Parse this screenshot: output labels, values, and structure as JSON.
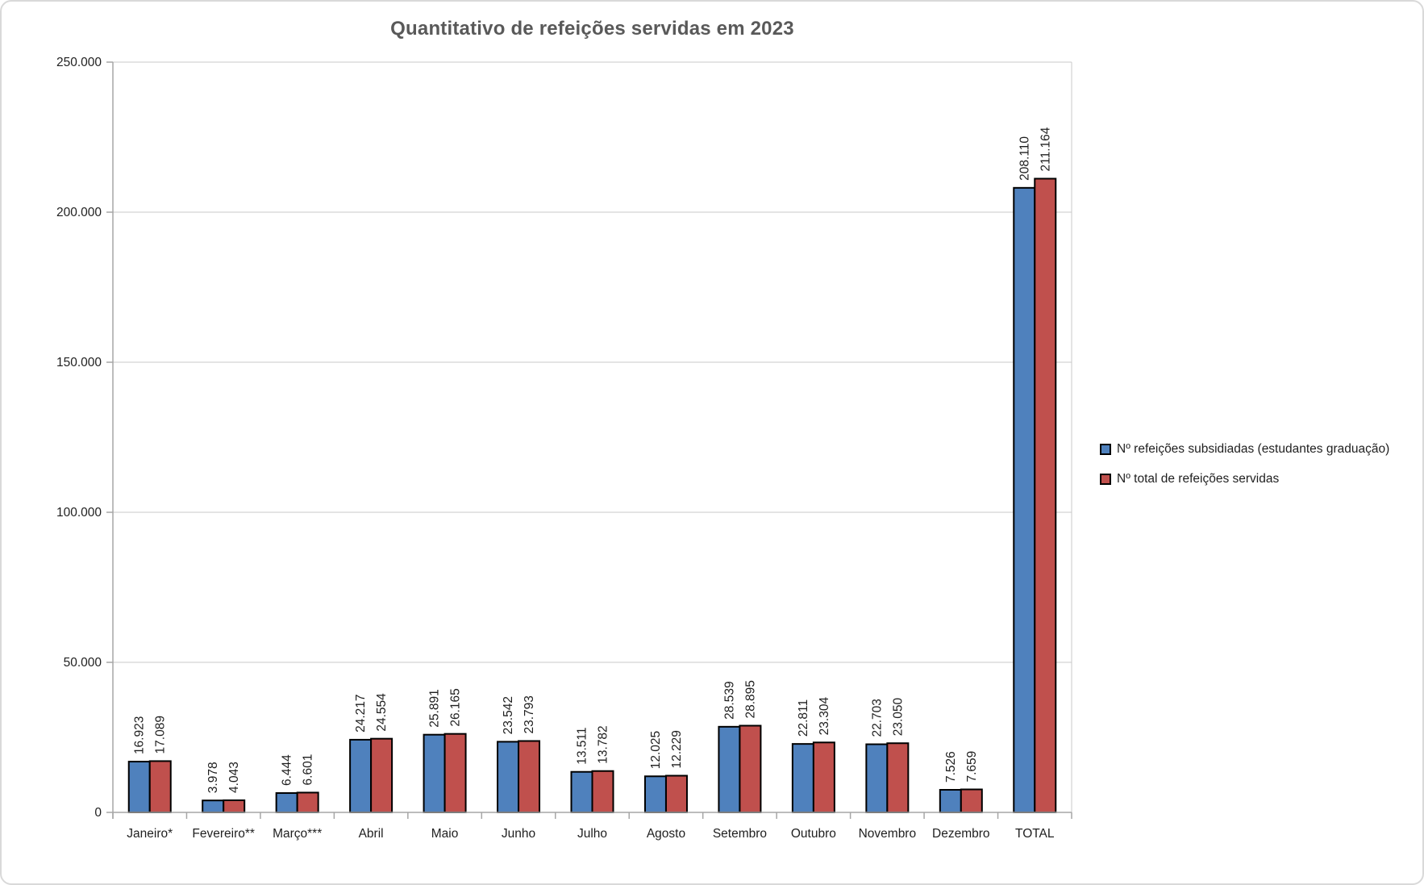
{
  "chart_data": {
    "type": "bar",
    "title": "Quantitativo de refeições servidas em 2023",
    "categories": [
      "Janeiro*",
      "Fevereiro**",
      "Março***",
      "Abril",
      "Maio",
      "Junho",
      "Julho",
      "Agosto",
      "Setembro",
      "Outubro",
      "Novembro",
      "Dezembro",
      "TOTAL"
    ],
    "series": [
      {
        "name": "Nº refeições subsidiadas (estudantes graduação)",
        "color": "#4F81BD",
        "values": [
          16923,
          3978,
          6444,
          24217,
          25891,
          23542,
          13511,
          12025,
          28539,
          22811,
          22703,
          7526,
          208110
        ],
        "labels": [
          "16.923",
          "3.978",
          "6.444",
          "24.217",
          "25.891",
          "23.542",
          "13.511",
          "12.025",
          "28.539",
          "22.811",
          "22.703",
          "7.526",
          "208.110"
        ]
      },
      {
        "name": "Nº total de refeições servidas",
        "color": "#C0504D",
        "values": [
          17089,
          4043,
          6601,
          24554,
          26165,
          23793,
          13782,
          12229,
          28895,
          23304,
          23050,
          7659,
          211164
        ],
        "labels": [
          "17.089",
          "4.043",
          "6.601",
          "24.554",
          "26.165",
          "23.793",
          "13.782",
          "12.229",
          "28.895",
          "23.304",
          "23.050",
          "7.659",
          "211.164"
        ]
      }
    ],
    "ylim": [
      0,
      250000
    ],
    "y_ticks": [
      0,
      50000,
      100000,
      150000,
      200000,
      250000
    ],
    "y_tick_labels": [
      "0",
      "50.000",
      "100.000",
      "150.000",
      "200.000",
      "250.000"
    ],
    "xlabel": "",
    "ylabel": "",
    "grid": "horizontal",
    "legend_position": "right",
    "bar_border_color": "#000000",
    "value_label_rotation": -90
  }
}
